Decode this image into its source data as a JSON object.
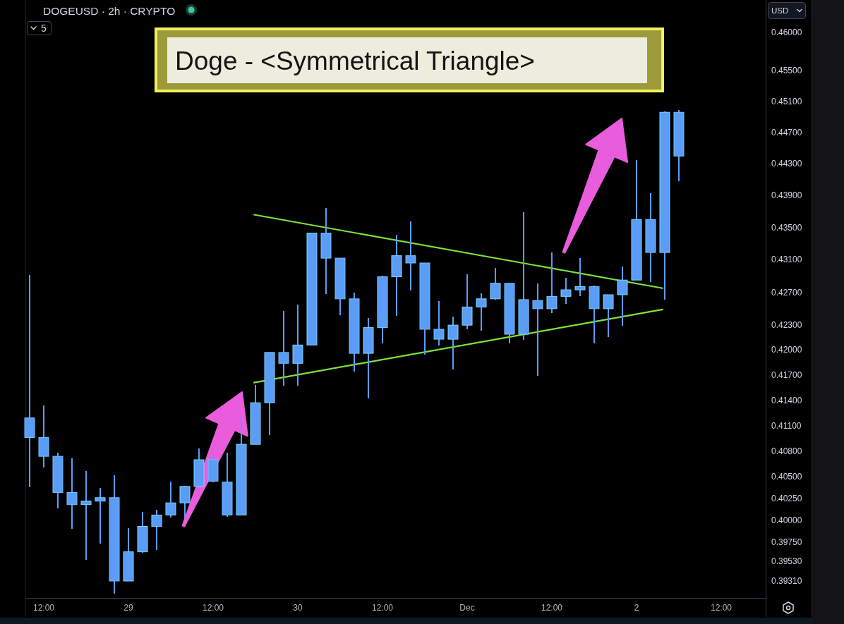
{
  "chart_data": {
    "type": "candlestick",
    "title": "Doge - <Symmetrical Triangle>",
    "subtitle": "DOGEUSD · 2h · CRYPTO",
    "annotations": [
      "5",
      "USD"
    ],
    "log": true,
    "color": "#5b9cf6",
    "x": [
      "--11-28T10:00",
      "--11-28T12:00",
      "--11-28T14:00",
      "--11-28T16:00",
      "--11-28T18:00",
      "--11-28T20:00",
      "--11-28T22:00",
      "--11-29T00:00",
      "--11-29T02:00",
      "--11-29T04:00",
      "--11-29T06:00",
      "--11-29T08:00",
      "--11-29T10:00",
      "--11-29T12:00",
      "--11-29T14:00",
      "--11-29T16:00",
      "--11-29T18:00",
      "--11-29T20:00",
      "--11-29T22:00",
      "--11-30T00:00",
      "--11-30T02:00",
      "--11-30T04:00",
      "--11-30T06:00",
      "--11-30T08:00",
      "--11-30T10:00",
      "--11-30T12:00",
      "--11-30T14:00",
      "--11-30T16:00",
      "--11-30T18:00",
      "--11-30T20:00",
      "--11-30T22:00",
      "--12-01T00:00",
      "--12-01T02:00",
      "--12-01T04:00",
      "--12-01T06:00",
      "--12-01T08:00",
      "--12-01T10:00",
      "--12-01T12:00",
      "--12-01T14:00",
      "--12-01T16:00",
      "--12-01T18:00",
      "--12-01T20:00",
      "--12-01T22:00",
      "--12-02T00:00",
      "--12-02T02:00",
      "--12-02T04:00",
      "--12-02T06:00"
    ],
    "ohlc": [
      [
        0.4119,
        0.4291,
        0.4038,
        0.4096
      ],
      [
        0.4096,
        0.4134,
        0.4061,
        0.4074
      ],
      [
        0.4074,
        0.4078,
        0.4014,
        0.4032
      ],
      [
        0.4032,
        0.4072,
        0.399,
        0.4018
      ],
      [
        0.4018,
        0.4057,
        0.3955,
        0.4022
      ],
      [
        0.4022,
        0.4037,
        0.3973,
        0.4026
      ],
      [
        0.4026,
        0.4052,
        0.3917,
        0.3931
      ],
      [
        0.3931,
        0.3991,
        0.3931,
        0.3964
      ],
      [
        0.3964,
        0.401,
        0.3963,
        0.3993
      ],
      [
        0.3993,
        0.4012,
        0.3966,
        0.4006
      ],
      [
        0.4006,
        0.4045,
        0.4003,
        0.402
      ],
      [
        0.402,
        0.404,
        0.4002,
        0.4039
      ],
      [
        0.4039,
        0.4083,
        0.4039,
        0.407
      ],
      [
        0.407,
        0.4076,
        0.4044,
        0.4045
      ],
      [
        0.4044,
        0.4078,
        0.4004,
        0.4006
      ],
      [
        0.4006,
        0.4123,
        0.4006,
        0.4088
      ],
      [
        0.4088,
        0.4158,
        0.4088,
        0.4137
      ],
      [
        0.4137,
        0.4197,
        0.4099,
        0.4197
      ],
      [
        0.4197,
        0.4247,
        0.4157,
        0.4184
      ],
      [
        0.4184,
        0.4255,
        0.4157,
        0.4206
      ],
      [
        0.4206,
        0.4343,
        0.4206,
        0.4343
      ],
      [
        0.4343,
        0.4374,
        0.4268,
        0.4312
      ],
      [
        0.4312,
        0.4312,
        0.4242,
        0.4262
      ],
      [
        0.4262,
        0.427,
        0.4174,
        0.4196
      ],
      [
        0.4196,
        0.4239,
        0.4142,
        0.4227
      ],
      [
        0.4227,
        0.429,
        0.4208,
        0.4289
      ],
      [
        0.4289,
        0.4341,
        0.4241,
        0.4315
      ],
      [
        0.4315,
        0.4358,
        0.4272,
        0.4306
      ],
      [
        0.4306,
        0.4306,
        0.4194,
        0.4225
      ],
      [
        0.4225,
        0.4259,
        0.4205,
        0.4213
      ],
      [
        0.4213,
        0.424,
        0.4177,
        0.423
      ],
      [
        0.423,
        0.4292,
        0.4225,
        0.4252
      ],
      [
        0.4252,
        0.4269,
        0.4223,
        0.4262
      ],
      [
        0.4262,
        0.43,
        0.4261,
        0.4281
      ],
      [
        0.4281,
        0.4281,
        0.4208,
        0.4219
      ],
      [
        0.4219,
        0.4369,
        0.4212,
        0.4261
      ],
      [
        0.426,
        0.4281,
        0.4169,
        0.425
      ],
      [
        0.425,
        0.4319,
        0.4245,
        0.4265
      ],
      [
        0.4265,
        0.4288,
        0.4256,
        0.4273
      ],
      [
        0.4273,
        0.4312,
        0.4265,
        0.4277
      ],
      [
        0.4277,
        0.4278,
        0.4208,
        0.425
      ],
      [
        0.425,
        0.4267,
        0.4216,
        0.4267
      ],
      [
        0.4267,
        0.4302,
        0.4229,
        0.4285
      ],
      [
        0.4285,
        0.4435,
        0.4285,
        0.436
      ],
      [
        0.436,
        0.4393,
        0.4283,
        0.4319
      ],
      [
        0.4319,
        0.4497,
        0.4261,
        0.4496
      ],
      [
        0.4496,
        0.4499,
        0.4408,
        0.444
      ]
    ],
    "series": [
      {
        "type": "line",
        "color": "#7de33b",
        "x": [
          "--11-29T17:48",
          "--12-02T03:42"
        ],
        "values": [
          0.4366,
          0.4275
        ]
      },
      {
        "type": "line",
        "color": "#7de33b",
        "x": [
          "--11-29T17:48",
          "--12-02T03:42"
        ],
        "values": [
          0.4161,
          0.4249
        ]
      }
    ],
    "xlim": [
      "--11-28T09:30",
      "--12-02T18:18"
    ],
    "xticks": [
      {
        "value": "--11-28T12:00",
        "label": "12:00"
      },
      {
        "value": "--11-29",
        "label": "29"
      },
      {
        "value": "--11-29T12:00",
        "label": "12:00"
      },
      {
        "value": "--11-30",
        "label": "30"
      },
      {
        "value": "--11-30T12:00",
        "label": "12:00"
      },
      {
        "value": "--12-01",
        "label": "Dec"
      },
      {
        "value": "--12-01T12:00",
        "label": "12:00"
      },
      {
        "value": "--12-02",
        "label": "2"
      },
      {
        "value": "--12-02T12:00",
        "label": "12:00"
      }
    ],
    "ylim": [
      0.3912,
      0.4643
    ],
    "yticks": [
      {
        "value": 0.46,
        "label": "0.46000"
      },
      {
        "value": 0.455,
        "label": "0.45500"
      },
      {
        "value": 0.451,
        "label": "0.45100"
      },
      {
        "value": 0.447,
        "label": "0.44700"
      },
      {
        "value": 0.443,
        "label": "0.44300"
      },
      {
        "value": 0.439,
        "label": "0.43900"
      },
      {
        "value": 0.435,
        "label": "0.43500"
      },
      {
        "value": 0.431,
        "label": "0.43100"
      },
      {
        "value": 0.427,
        "label": "0.42700"
      },
      {
        "value": 0.423,
        "label": "0.42300"
      },
      {
        "value": 0.42,
        "label": "0.42000"
      },
      {
        "value": 0.417,
        "label": "0.41700"
      },
      {
        "value": 0.414,
        "label": "0.41400"
      },
      {
        "value": 0.411,
        "label": "0.41100"
      },
      {
        "value": 0.408,
        "label": "0.40800"
      },
      {
        "value": 0.405,
        "label": "0.40500"
      },
      {
        "value": 0.4025,
        "label": "0.40250"
      },
      {
        "value": 0.4,
        "label": "0.40000"
      },
      {
        "value": 0.3975,
        "label": "0.39750"
      },
      {
        "value": 0.3953,
        "label": "0.39530"
      },
      {
        "value": 0.3931,
        "label": "0.39310"
      }
    ]
  }
}
